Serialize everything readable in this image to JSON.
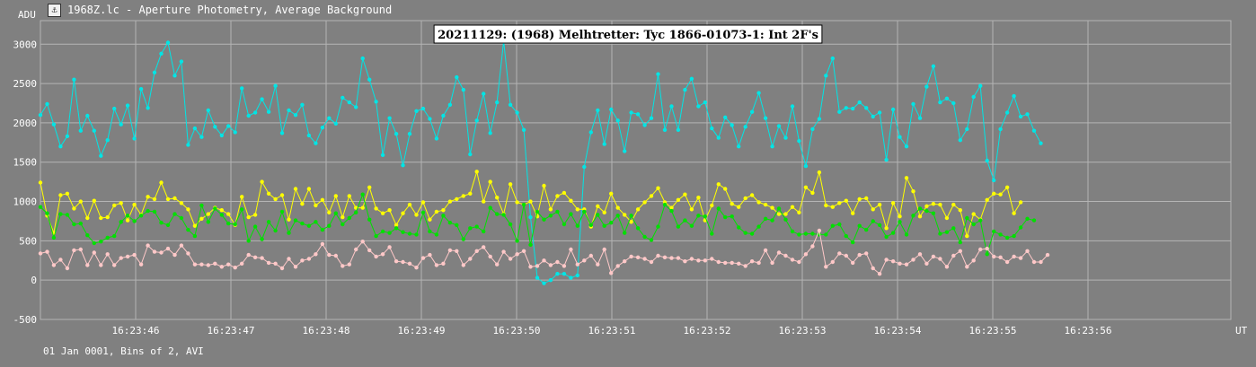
{
  "window": {
    "icon": "lightcurve-app-icon",
    "title": "1968Z.lc - Aperture Photometry, Average Background"
  },
  "footer_text": "01 Jan 0001, Bins of 2, AVI",
  "colors": {
    "background": "#808080",
    "grid": "#b4b4b4",
    "text": "#ffffff",
    "title_box": "#ffffff"
  },
  "chart_data": {
    "type": "line",
    "title": "20211129: (1968) Melhtretter: Tyc 1866-01073-1: Int 2F's",
    "ylabel": "ADU",
    "xlabel": "UT",
    "ylim": [
      -500,
      3300
    ],
    "yticks": [
      3000,
      2500,
      2000,
      1500,
      1000,
      500,
      0,
      -500
    ],
    "xlim": [
      45.0,
      57.5
    ],
    "x_tick_values": [
      46,
      47,
      48,
      49,
      50,
      51,
      52,
      53,
      54,
      55,
      56
    ],
    "x_tick_labels": [
      "16:23:46",
      "16:23:47",
      "16:23:48",
      "16:23:49",
      "16:23:50",
      "16:23:51",
      "16:23:52",
      "16:23:53",
      "16:23:54",
      "16:23:55",
      "16:23:56"
    ],
    "x_start": 45.0,
    "x_step": 0.0705,
    "grid": true,
    "series": [
      {
        "color": "#00e5e5",
        "values": [
          2100,
          2240,
          1980,
          1700,
          1830,
          2550,
          1900,
          2090,
          1900,
          1580,
          1780,
          2180,
          1980,
          2220,
          1800,
          2430,
          2190,
          2640,
          2880,
          3020,
          2600,
          2780,
          1720,
          1930,
          1820,
          2160,
          1950,
          1840,
          1960,
          1880,
          2440,
          2090,
          2130,
          2300,
          2140,
          2470,
          1870,
          2160,
          2100,
          2230,
          1840,
          1740,
          1940,
          2060,
          1990,
          2320,
          2260,
          2200,
          2820,
          2550,
          2270,
          1590,
          2060,
          1860,
          1460,
          1860,
          2150,
          2180,
          2050,
          1800,
          2090,
          2230,
          2580,
          2420,
          1600,
          2030,
          2370,
          1870,
          2260,
          3040,
          2230,
          2130,
          1910,
          800,
          30,
          -40,
          0,
          80,
          80,
          30,
          60,
          1440,
          1880,
          2160,
          1730,
          2170,
          2030,
          1640,
          2130,
          2110,
          1970,
          2060,
          2620,
          1910,
          2210,
          1910,
          2420,
          2560,
          2210,
          2260,
          1930,
          1810,
          2070,
          1970,
          1700,
          1950,
          2140,
          2380,
          2060,
          1700,
          1960,
          1810,
          2210,
          1770,
          1450,
          1920,
          2050,
          2600,
          2820,
          2140,
          2190,
          2180,
          2260,
          2190,
          2080,
          2130,
          1530,
          2170,
          1820,
          1700,
          2240,
          2060,
          2460,
          2720,
          2260,
          2310,
          2250,
          1780,
          1920,
          2330,
          2470,
          1520,
          1270,
          1920,
          2130,
          2340,
          2080,
          2110,
          1900,
          1740
        ]
      },
      {
        "color": "#ffff00",
        "values": [
          1240,
          820,
          600,
          1080,
          1100,
          910,
          1000,
          790,
          1010,
          790,
          800,
          950,
          980,
          760,
          960,
          830,
          1060,
          1030,
          1240,
          1030,
          1040,
          980,
          900,
          690,
          780,
          840,
          920,
          890,
          840,
          700,
          1060,
          800,
          830,
          1250,
          1100,
          1030,
          1080,
          770,
          1160,
          970,
          1160,
          950,
          1020,
          860,
          1070,
          800,
          1070,
          920,
          920,
          1180,
          910,
          850,
          890,
          700,
          850,
          960,
          830,
          990,
          770,
          870,
          890,
          1000,
          1030,
          1070,
          1100,
          1380,
          1000,
          1250,
          1050,
          840,
          1220,
          990,
          960,
          1000,
          810,
          1200,
          900,
          1070,
          1110,
          1010,
          900,
          900,
          680,
          940,
          860,
          1100,
          920,
          830,
          740,
          900,
          990,
          1070,
          1170,
          990,
          920,
          1020,
          1090,
          900,
          1050,
          760,
          950,
          1220,
          1160,
          970,
          930,
          1040,
          1080,
          990,
          960,
          920,
          840,
          840,
          930,
          860,
          1180,
          1110,
          1370,
          950,
          930,
          980,
          1010,
          850,
          1030,
          1040,
          900,
          960,
          660,
          980,
          810,
          1300,
          1130,
          810,
          940,
          970,
          960,
          790,
          960,
          890,
          560,
          840,
          770,
          1020,
          1100,
          1090,
          1180,
          850,
          990
        ]
      },
      {
        "color": "#00e000",
        "values": [
          930,
          850,
          540,
          840,
          830,
          710,
          720,
          570,
          470,
          490,
          540,
          560,
          740,
          820,
          750,
          820,
          880,
          870,
          730,
          700,
          840,
          790,
          640,
          560,
          950,
          740,
          910,
          830,
          720,
          710,
          900,
          500,
          680,
          520,
          740,
          630,
          870,
          600,
          760,
          720,
          690,
          740,
          640,
          690,
          850,
          710,
          790,
          860,
          1090,
          770,
          560,
          620,
          600,
          660,
          610,
          590,
          580,
          860,
          620,
          580,
          820,
          730,
          700,
          520,
          660,
          680,
          620,
          920,
          840,
          830,
          710,
          500,
          960,
          450,
          870,
          770,
          820,
          870,
          710,
          840,
          690,
          870,
          700,
          830,
          690,
          730,
          820,
          600,
          820,
          660,
          550,
          510,
          680,
          960,
          880,
          680,
          760,
          690,
          820,
          810,
          590,
          910,
          800,
          810,
          670,
          600,
          590,
          680,
          780,
          760,
          910,
          770,
          620,
          580,
          590,
          590,
          580,
          580,
          690,
          710,
          560,
          480,
          690,
          640,
          750,
          700,
          550,
          600,
          740,
          580,
          820,
          910,
          880,
          850,
          590,
          610,
          660,
          480,
          790,
          710,
          760,
          330,
          620,
          580,
          540,
          560,
          670,
          780,
          760
        ]
      },
      {
        "color": "#ffc8c8",
        "values": [
          340,
          360,
          190,
          260,
          150,
          380,
          390,
          190,
          350,
          190,
          330,
          190,
          280,
          300,
          320,
          200,
          440,
          360,
          350,
          400,
          320,
          440,
          340,
          200,
          200,
          190,
          210,
          170,
          200,
          160,
          210,
          320,
          290,
          280,
          220,
          210,
          150,
          270,
          170,
          250,
          270,
          330,
          460,
          320,
          310,
          180,
          200,
          390,
          490,
          380,
          300,
          330,
          420,
          240,
          230,
          210,
          160,
          280,
          320,
          190,
          210,
          380,
          370,
          190,
          270,
          370,
          420,
          300,
          200,
          360,
          270,
          330,
          370,
          170,
          180,
          250,
          190,
          230,
          180,
          390,
          200,
          250,
          310,
          200,
          390,
          90,
          180,
          240,
          300,
          290,
          270,
          230,
          310,
          290,
          280,
          280,
          240,
          270,
          250,
          250,
          270,
          230,
          220,
          220,
          210,
          180,
          240,
          220,
          380,
          220,
          350,
          310,
          260,
          230,
          330,
          430,
          630,
          170,
          230,
          340,
          310,
          220,
          320,
          340,
          150,
          80,
          260,
          240,
          210,
          200,
          260,
          330,
          210,
          300,
          270,
          170,
          310,
          370,
          170,
          250,
          390,
          400,
          300,
          290,
          230,
          300,
          280,
          370,
          230,
          230,
          320
        ]
      }
    ]
  }
}
